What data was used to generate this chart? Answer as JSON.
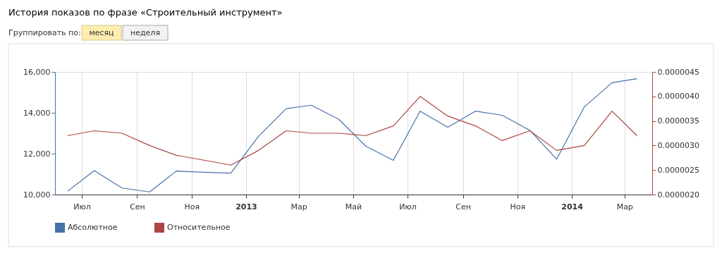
{
  "chart_data": {
    "type": "line",
    "title": "История показов по фразе «Строительный инструмент»",
    "annotations": [
      "Группировать по:",
      "месяц",
      "неделя"
    ],
    "x": [
      "2012-06-15",
      "2012-07-15",
      "2012-08-15",
      "2012-09-15",
      "2012-10-15",
      "2012-11-15",
      "2012-12-15",
      "2013-01-15",
      "2013-02-15",
      "2013-03-15",
      "2013-04-15",
      "2013-05-15",
      "2013-06-15",
      "2013-07-15",
      "2013-08-15",
      "2013-09-15",
      "2013-10-15",
      "2013-11-15",
      "2013-12-15",
      "2014-01-15",
      "2014-02-15",
      "2014-03-15"
    ],
    "series": [
      {
        "name": "Абсолютное",
        "color": "#4572a7",
        "values": [
          10160,
          11170,
          10320,
          10130,
          11150,
          11090,
          11050,
          12850,
          14200,
          14370,
          13680,
          12370,
          11670,
          14080,
          13290,
          14080,
          13880,
          13140,
          11730,
          14290,
          15470,
          15670
        ]
      },
      {
        "name": "Относительное",
        "color": "#aa4643",
        "axis": "y2",
        "values": [
          3.2e-06,
          3.3e-06,
          3.25e-06,
          3e-06,
          2.8e-06,
          2.7e-06,
          2.6e-06,
          2.9e-06,
          3.3e-06,
          3.25e-06,
          3.25e-06,
          3.2e-06,
          3.4e-06,
          4e-06,
          3.6e-06,
          3.4e-06,
          3.1e-06,
          3.3e-06,
          2.9e-06,
          3e-06,
          3.7e-06,
          3.2e-06
        ]
      }
    ],
    "xlim": [
      "2012-06-01",
      "2014-04-01"
    ],
    "xticks": [
      {
        "value": "2012-07-01",
        "label": "Июл"
      },
      {
        "value": "2012-09-01",
        "label": "Сен"
      },
      {
        "value": "2012-11-01",
        "label": "Ноя"
      },
      {
        "value": "2013-01-01",
        "label": "2013"
      },
      {
        "value": "2013-03-01",
        "label": "Мар"
      },
      {
        "value": "2013-05-01",
        "label": "Май"
      },
      {
        "value": "2013-07-01",
        "label": "Июл"
      },
      {
        "value": "2013-09-01",
        "label": "Сен"
      },
      {
        "value": "2013-11-01",
        "label": "Ноя"
      },
      {
        "value": "2014-01-01",
        "label": "2014"
      },
      {
        "value": "2014-03-01",
        "label": "Мар"
      }
    ],
    "ylim": [
      10000,
      16000
    ],
    "yticks": [
      {
        "value": 10000,
        "label": "10,000"
      },
      {
        "value": 12000,
        "label": "12,000"
      },
      {
        "value": 14000,
        "label": "14,000"
      },
      {
        "value": 16000,
        "label": "16,000"
      }
    ],
    "y2lim": [
      2e-06,
      4.5e-06
    ],
    "y2ticks": [
      {
        "value": 2e-06,
        "label": "0.0000020"
      },
      {
        "value": 2.5e-06,
        "label": "0.0000025"
      },
      {
        "value": 3e-06,
        "label": "0.0000030"
      },
      {
        "value": 3.5e-06,
        "label": "0.0000035"
      },
      {
        "value": 4e-06,
        "label": "0.0000040"
      },
      {
        "value": 4.5e-06,
        "label": "0.0000045"
      }
    ],
    "grid": "x",
    "legend": "bottom left",
    "marker": "none",
    "line_style": "solid"
  }
}
